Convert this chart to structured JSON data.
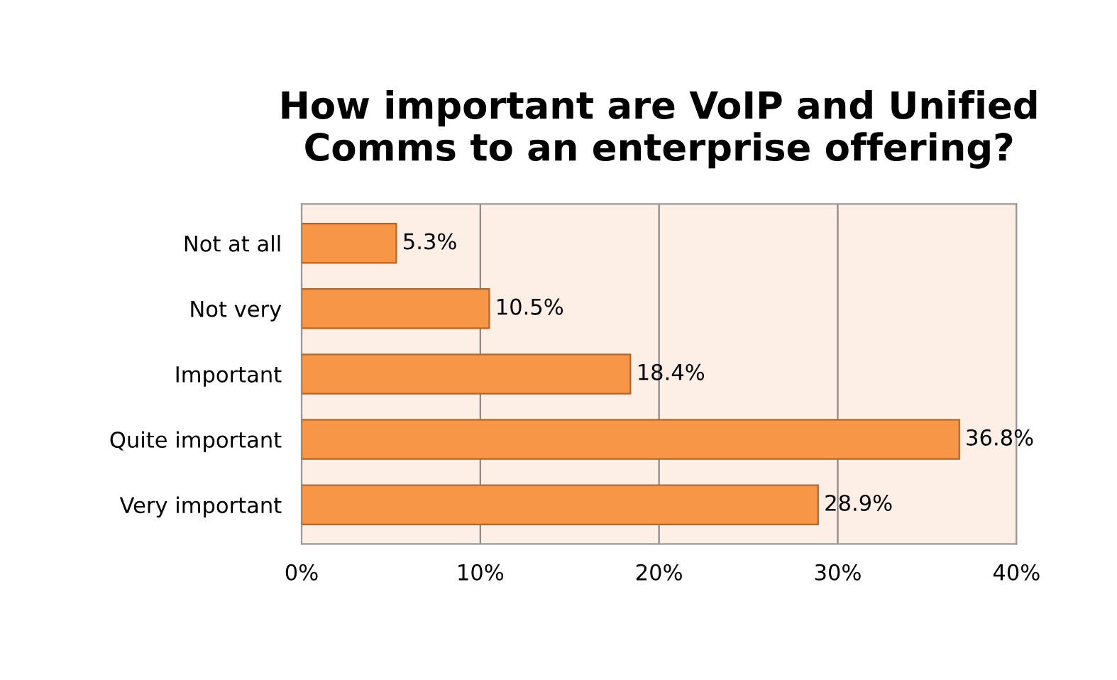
{
  "chart_data": {
    "type": "bar",
    "orientation": "horizontal",
    "title": "How important are VoIP and Unified\nComms to an enterprise offering?",
    "categories": [
      "Not at all",
      "Not very",
      "Important",
      "Quite important",
      "Very important"
    ],
    "values": [
      5.3,
      10.5,
      18.4,
      36.8,
      28.9
    ],
    "value_labels": [
      "5.3%",
      "10.5%",
      "18.4%",
      "36.8%",
      "28.9%"
    ],
    "color": "#f79646",
    "xlim": [
      0,
      40
    ],
    "xticks": [
      {
        "value": 0,
        "label": "0%"
      },
      {
        "value": 10,
        "label": "10%"
      },
      {
        "value": 20,
        "label": "20%"
      },
      {
        "value": 30,
        "label": "30%"
      },
      {
        "value": 40,
        "label": "40%"
      }
    ],
    "grid": "x"
  }
}
